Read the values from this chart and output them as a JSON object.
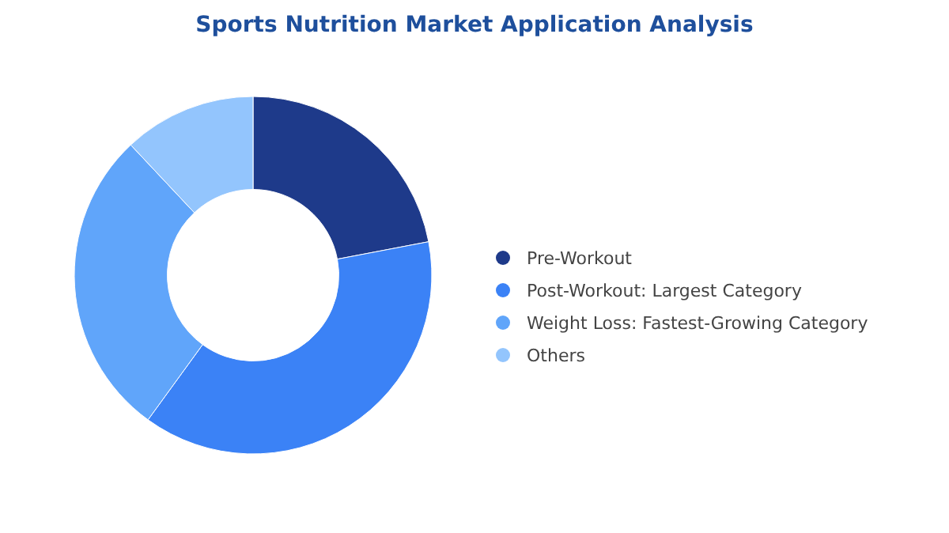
{
  "chart_data": {
    "type": "donut",
    "title": "Sports Nutrition Market Application Analysis",
    "categories": [
      "Pre-Workout",
      "Post-Workout:  Largest Category",
      "Weight Loss:  Fastest-Growing Category",
      "Others"
    ],
    "values": [
      22,
      38,
      28,
      12
    ],
    "colors": [
      "#1e3a8a",
      "#3b82f6",
      "#60a5fa",
      "#93c5fd"
    ],
    "legend": "right"
  }
}
